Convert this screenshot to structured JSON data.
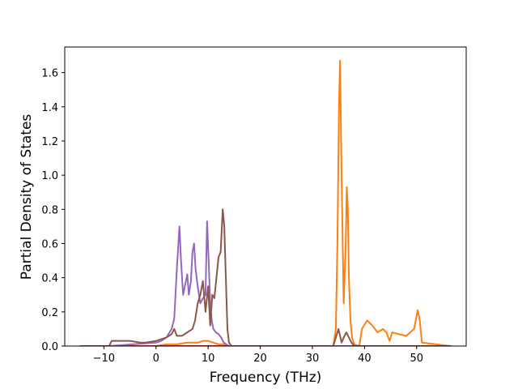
{
  "chart_data": {
    "type": "line",
    "title": "",
    "xlabel": "Frequency (THz)",
    "ylabel": "Partial Density of States",
    "xlim": [
      -17.5,
      59.5
    ],
    "ylim": [
      0,
      1.75
    ],
    "xticks": [
      -10,
      0,
      10,
      20,
      30,
      40,
      50
    ],
    "xtick_labels": [
      "−10",
      "0",
      "10",
      "20",
      "30",
      "40",
      "50"
    ],
    "yticks": [
      0.0,
      0.2,
      0.4,
      0.6,
      0.8,
      1.0,
      1.2,
      1.4,
      1.6
    ],
    "ytick_labels": [
      "0.0",
      "0.2",
      "0.4",
      "0.6",
      "0.8",
      "1.0",
      "1.2",
      "1.4",
      "1.6"
    ],
    "grid": false,
    "legend": "none",
    "series": [
      {
        "color": "#ff7f0e",
        "x": [
          -14.5,
          0,
          2,
          4,
          6,
          7,
          8,
          9,
          10,
          11,
          12,
          13,
          14,
          20,
          34,
          34.5,
          34.8,
          35.1,
          35.3,
          35.6,
          36.0,
          36.4,
          36.6,
          36.8,
          37.0,
          37.3,
          37.6,
          38,
          39,
          39.5,
          40.5,
          41.5,
          42.5,
          43.5,
          44.2,
          44.8,
          45.3,
          46.5,
          48,
          49.5,
          50.2,
          50.6,
          51,
          56.5
        ],
        "y": [
          0,
          0,
          0.01,
          0.01,
          0.02,
          0.02,
          0.02,
          0.03,
          0.03,
          0.02,
          0.01,
          0.01,
          0,
          0,
          0,
          0.1,
          0.6,
          1.4,
          1.67,
          1.0,
          0.25,
          0.6,
          0.93,
          0.8,
          0.4,
          0.15,
          0.05,
          0.01,
          0.0,
          0.1,
          0.15,
          0.12,
          0.08,
          0.1,
          0.08,
          0.03,
          0.08,
          0.07,
          0.06,
          0.1,
          0.21,
          0.15,
          0.02,
          0
        ]
      },
      {
        "color": "#d62728",
        "x": [
          -14.5,
          56.5
        ],
        "y": [
          0,
          0
        ]
      },
      {
        "color": "#9467bd",
        "x": [
          -14.5,
          -9,
          0,
          1,
          2,
          3,
          3.5,
          4.0,
          4.5,
          4.8,
          5.2,
          5.6,
          6.0,
          6.3,
          6.7,
          7.0,
          7.3,
          7.6,
          8.0,
          8.5,
          9.0,
          9.5,
          9.8,
          10.1,
          10.4,
          10.7,
          11.0,
          11.5,
          12,
          12.5,
          13,
          14,
          35,
          56.5
        ],
        "y": [
          0,
          0,
          0.02,
          0.03,
          0.05,
          0.1,
          0.16,
          0.45,
          0.7,
          0.5,
          0.3,
          0.36,
          0.42,
          0.3,
          0.38,
          0.55,
          0.6,
          0.45,
          0.35,
          0.25,
          0.28,
          0.3,
          0.73,
          0.5,
          0.25,
          0.15,
          0.1,
          0.08,
          0.07,
          0.05,
          0.02,
          0,
          0,
          0
        ]
      },
      {
        "color": "#8c564b",
        "x": [
          -14.5,
          -9,
          -8.5,
          -5,
          -3,
          -2,
          0,
          1,
          2,
          3,
          3.5,
          4,
          5,
          6,
          7,
          7.5,
          8,
          8.5,
          9.0,
          9.5,
          10.0,
          10.4,
          10.8,
          11.2,
          11.6,
          12.0,
          12.4,
          12.8,
          13.1,
          13.4,
          13.7,
          14.0,
          14.5,
          20,
          34,
          35,
          35.6,
          36.0,
          36.5,
          37.0,
          37.5,
          38,
          56.5
        ],
        "y": [
          0,
          0,
          0.03,
          0.03,
          0.02,
          0.02,
          0.03,
          0.04,
          0.05,
          0.07,
          0.1,
          0.06,
          0.06,
          0.08,
          0.1,
          0.15,
          0.25,
          0.3,
          0.38,
          0.2,
          0.35,
          0.12,
          0.3,
          0.28,
          0.4,
          0.52,
          0.55,
          0.8,
          0.7,
          0.4,
          0.1,
          0.02,
          0,
          0,
          0,
          0.1,
          0.02,
          0.05,
          0.08,
          0.05,
          0.02,
          0,
          0
        ]
      }
    ]
  }
}
